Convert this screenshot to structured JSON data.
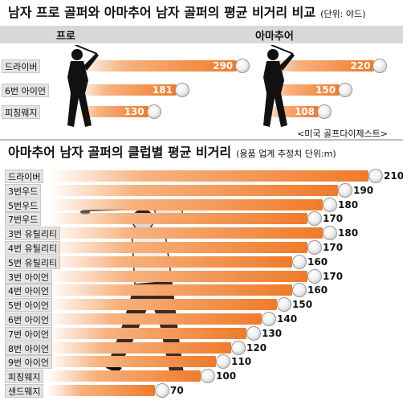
{
  "colors": {
    "bar": "#ef7b2a",
    "header_band": "#d8d8d8",
    "label_bg": "#e4e4e4"
  },
  "top": {
    "title": "남자 프로 골퍼와 아마추어 남자 골퍼의 평균 비거리 비교",
    "unit": "(단위: 야드)",
    "source": "<미국 골프다이제스트>",
    "chart_data": {
      "type": "bar",
      "categories": [
        "드라이버",
        "6번 아이언",
        "피칭웨지"
      ],
      "series": [
        {
          "name": "프로",
          "values": [
            290,
            181,
            130
          ]
        },
        {
          "name": "아마추어",
          "values": [
            220,
            150,
            108
          ]
        }
      ]
    }
  },
  "bottom": {
    "title": "아마추어 남자 골퍼의 클럽별 평균 비거리",
    "unit": "(용품 업계 추정치  단위:m)",
    "chart_data": {
      "type": "bar",
      "categories": [
        "드라이버",
        "3번우드",
        "5번우드",
        "7번우드",
        "3번 유틸리티",
        "4번 유틸리티",
        "5번 유틸리티",
        "3번 아이언",
        "4번 아이언",
        "5번 아이언",
        "6번 아이언",
        "7번 아이언",
        "8번 아이언",
        "9번 아이언",
        "피칭웨지",
        "샌드웨지"
      ],
      "values": [
        210,
        190,
        180,
        170,
        180,
        170,
        160,
        170,
        160,
        150,
        140,
        130,
        120,
        110,
        100,
        70
      ]
    }
  }
}
